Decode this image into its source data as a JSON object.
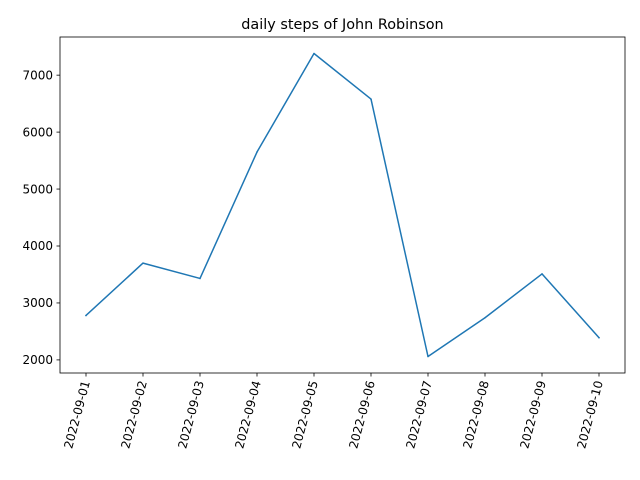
{
  "chart_data": {
    "type": "line",
    "title": "daily steps of John Robinson",
    "xlabel": "",
    "ylabel": "",
    "x": [
      "2022-09-01",
      "2022-09-02",
      "2022-09-03",
      "2022-09-04",
      "2022-09-05",
      "2022-09-06",
      "2022-09-07",
      "2022-09-08",
      "2022-09-09",
      "2022-09-10"
    ],
    "series": [
      {
        "values": [
          2780,
          3700,
          3430,
          5650,
          7380,
          6580,
          2060,
          2740,
          3510,
          2390
        ],
        "color": "#1f77b4"
      }
    ],
    "ylim": [
      1770,
      7670
    ],
    "yticks": [
      2000,
      3000,
      4000,
      5000,
      6000,
      7000
    ],
    "grid": false,
    "legend": "none"
  }
}
